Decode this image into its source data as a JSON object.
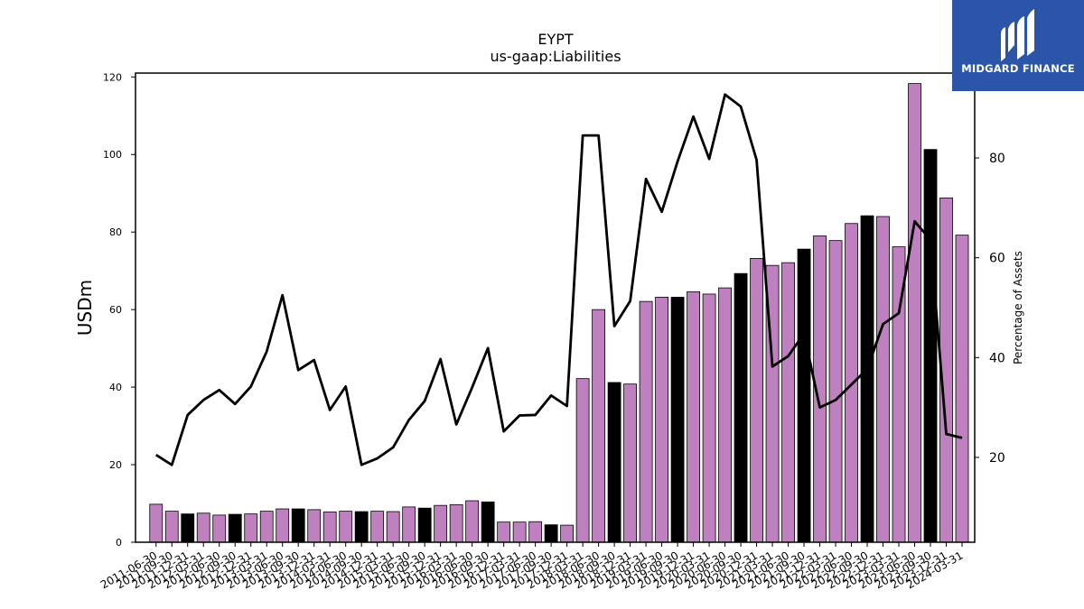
{
  "brand": {
    "name": "MIDGARD FINANCE",
    "bg_color": "#2b55a8"
  },
  "chart_data": {
    "type": "bar",
    "title": "EYPT",
    "subtitle": "us-gaap:Liabilities",
    "ylabel": "USDm",
    "y2label": "Percentage of Assets",
    "ylim": [
      0,
      121
    ],
    "y2lim": [
      3,
      97
    ],
    "yticks": [
      0,
      20,
      40,
      60,
      80,
      100,
      120
    ],
    "y2ticks": [
      20,
      40,
      60,
      80
    ],
    "colors": {
      "bar": "#bf80bf",
      "bar_highlight": "#000000",
      "line": "#000000"
    },
    "categories": [
      "2011-06-30",
      "2011-09-30",
      "2011-12-31",
      "2012-03-31",
      "2012-06-30",
      "2012-09-30",
      "2012-12-31",
      "2013-03-31",
      "2013-06-30",
      "2013-09-30",
      "2013-12-31",
      "2014-03-31",
      "2014-06-30",
      "2014-09-30",
      "2014-12-31",
      "2015-03-31",
      "2015-06-30",
      "2015-09-30",
      "2015-12-31",
      "2016-03-31",
      "2016-06-30",
      "2016-09-30",
      "2016-12-31",
      "2017-03-31",
      "2017-06-30",
      "2017-09-30",
      "2017-12-31",
      "2018-03-31",
      "2018-06-30",
      "2018-09-30",
      "2018-12-31",
      "2019-03-31",
      "2019-06-30",
      "2019-09-30",
      "2019-12-31",
      "2020-03-31",
      "2020-06-30",
      "2020-09-30",
      "2020-12-31",
      "2021-03-31",
      "2021-06-30",
      "2021-09-30",
      "2021-12-31",
      "2022-03-31",
      "2022-06-30",
      "2022-09-30",
      "2022-12-31",
      "2023-03-31",
      "2023-06-30",
      "2023-09-30",
      "2023-12-31",
      "2024-03-31"
    ],
    "series": [
      {
        "kind": "bar",
        "values": [
          9.8,
          8.0,
          7.3,
          7.5,
          7.0,
          7.2,
          7.3,
          8.0,
          8.6,
          8.6,
          8.4,
          7.8,
          8.0,
          7.9,
          8.0,
          7.9,
          9.1,
          8.8,
          9.5,
          9.7,
          10.7,
          10.4,
          5.2,
          5.2,
          5.3,
          4.5,
          4.4,
          42.2,
          60.0,
          41.2,
          40.8,
          62.1,
          63.2,
          63.2,
          64.6,
          64.0,
          65.6,
          69.3,
          73.2,
          71.4,
          72.1,
          75.6,
          79.0,
          77.8,
          82.2,
          84.2,
          84.0,
          76.2,
          118.3,
          101.3,
          88.8,
          79.2
        ],
        "highlight": [
          false,
          false,
          true,
          false,
          false,
          true,
          false,
          false,
          false,
          true,
          false,
          false,
          false,
          true,
          false,
          false,
          false,
          true,
          false,
          false,
          false,
          true,
          false,
          false,
          false,
          true,
          false,
          false,
          false,
          true,
          false,
          false,
          false,
          true,
          false,
          false,
          false,
          true,
          false,
          false,
          false,
          true,
          false,
          false,
          false,
          true,
          false,
          false,
          false,
          true,
          false,
          false
        ]
      },
      {
        "kind": "line",
        "axis": "right",
        "values": [
          20.5,
          18.5,
          28.5,
          31.5,
          33.5,
          30.7,
          34.2,
          41.2,
          52.5,
          37.5,
          39.5,
          29.5,
          34.2,
          18.5,
          19.8,
          22.0,
          27.5,
          31.3,
          39.7,
          26.6,
          34.0,
          41.9,
          25.2,
          28.4,
          28.5,
          32.4,
          30.3,
          84.5,
          84.5,
          46.3,
          51.3,
          75.8,
          69.2,
          79.3,
          88.3,
          79.8,
          92.7,
          90.3,
          79.6,
          38.2,
          40.3,
          44.8,
          30.0,
          31.5,
          34.6,
          37.7,
          46.7,
          48.9,
          67.3,
          63.6,
          24.7,
          23.9
        ]
      }
    ]
  }
}
